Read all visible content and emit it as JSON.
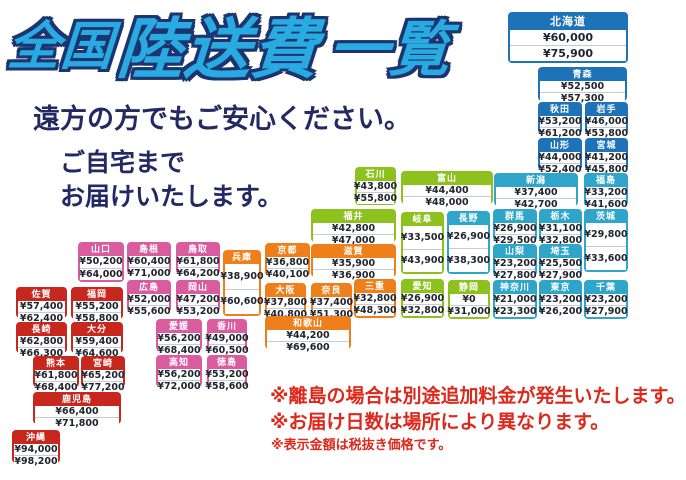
{
  "title": {
    "part1": "全国",
    "part2": "陸送費",
    "part3": "一覧"
  },
  "subtitle_line1": "遠方の方でもご安心ください。",
  "subtitle_line2": "ご自宅まで",
  "subtitle_line3": "お届けいたします。",
  "notes": [
    "※離島の場合は別途追加料金が発生いたします。",
    "※お届け日数は場所により異なります。",
    "※表示金額は税抜き価格です。"
  ],
  "colors": {
    "hokkaido_tohoku": "#1E73B8",
    "kanto_koshinetsu": "#2FA6C9",
    "hokuriku_tokai": "#8DC21E",
    "kansai": "#EF7F1A",
    "chugoku_shikoku": "#D95C9E",
    "kyushu_okinawa": "#C8271E",
    "title_fill": "#29ABE2",
    "title_outline": "#1C3571",
    "subtitle_text": "#232A63",
    "note_text": "#DD281C"
  },
  "prefectures": [
    {
      "id": "hokkaido",
      "name": "北海道",
      "price1": "¥60,000",
      "price2": "¥75,900",
      "group": "hokkaido_tohoku"
    },
    {
      "id": "aomori",
      "name": "青森",
      "price1": "¥52,500",
      "price2": "¥57,300",
      "group": "hokkaido_tohoku"
    },
    {
      "id": "akita",
      "name": "秋田",
      "price1": "¥53,200",
      "price2": "¥61,200",
      "group": "hokkaido_tohoku"
    },
    {
      "id": "iwate",
      "name": "岩手",
      "price1": "¥46,000",
      "price2": "¥53,800",
      "group": "hokkaido_tohoku"
    },
    {
      "id": "yamagata",
      "name": "山形",
      "price1": "¥44,000",
      "price2": "¥52,400",
      "group": "hokkaido_tohoku"
    },
    {
      "id": "miyagi",
      "name": "宮城",
      "price1": "¥41,200",
      "price2": "¥45,800",
      "group": "hokkaido_tohoku"
    },
    {
      "id": "niigata",
      "name": "新潟",
      "price1": "¥37,400",
      "price2": "¥42,700",
      "group": "kanto_koshinetsu"
    },
    {
      "id": "fukushima",
      "name": "福島",
      "price1": "¥33,200",
      "price2": "¥41,600",
      "group": "kanto_koshinetsu"
    },
    {
      "id": "gunma",
      "name": "群馬",
      "price1": "¥26,900",
      "price2": "¥29,500",
      "group": "kanto_koshinetsu"
    },
    {
      "id": "tochigi",
      "name": "栃木",
      "price1": "¥31,100",
      "price2": "¥32,800",
      "group": "kanto_koshinetsu"
    },
    {
      "id": "ibaraki",
      "name": "茨城",
      "price1": "¥29,800",
      "price2": "¥33,600",
      "group": "kanto_koshinetsu"
    },
    {
      "id": "yamanashi",
      "name": "山梨",
      "price1": "¥23,200",
      "price2": "¥27,800",
      "group": "kanto_koshinetsu"
    },
    {
      "id": "saitama",
      "name": "埼玉",
      "price1": "¥25,500",
      "price2": "¥27,900",
      "group": "kanto_koshinetsu"
    },
    {
      "id": "kanagawa",
      "name": "神奈川",
      "price1": "¥21,000",
      "price2": "¥23,300",
      "group": "kanto_koshinetsu"
    },
    {
      "id": "tokyo",
      "name": "東京",
      "price1": "¥23,200",
      "price2": "¥26,200",
      "group": "kanto_koshinetsu"
    },
    {
      "id": "chiba",
      "name": "千葉",
      "price1": "¥23,200",
      "price2": "¥27,900",
      "group": "kanto_koshinetsu"
    },
    {
      "id": "nagano",
      "name": "長野",
      "price1": "¥26,900",
      "price2": "¥38,300",
      "group": "kanto_koshinetsu"
    },
    {
      "id": "ishikawa",
      "name": "石川",
      "price1": "¥43,800",
      "price2": "¥55,800",
      "group": "hokuriku_tokai"
    },
    {
      "id": "toyama",
      "name": "富山",
      "price1": "¥44,400",
      "price2": "¥48,000",
      "group": "hokuriku_tokai"
    },
    {
      "id": "fukui",
      "name": "福井",
      "price1": "¥42,800",
      "price2": "¥47,000",
      "group": "hokuriku_tokai"
    },
    {
      "id": "gifu",
      "name": "岐阜",
      "price1": "¥33,500",
      "price2": "¥43,900",
      "group": "hokuriku_tokai"
    },
    {
      "id": "aichi",
      "name": "愛知",
      "price1": "¥26,900",
      "price2": "¥32,800",
      "group": "hokuriku_tokai"
    },
    {
      "id": "shizuoka",
      "name": "静岡",
      "price1": "¥0",
      "price2": "¥31,000",
      "group": "hokuriku_tokai"
    },
    {
      "id": "kyoto",
      "name": "京都",
      "price1": "¥36,800",
      "price2": "¥40,100",
      "group": "kansai"
    },
    {
      "id": "shiga",
      "name": "滋賀",
      "price1": "¥35,900",
      "price2": "¥36,900",
      "group": "kansai"
    },
    {
      "id": "hyogo",
      "name": "兵庫",
      "price1": "¥38,900",
      "price2": "¥60,600",
      "group": "kansai"
    },
    {
      "id": "osaka",
      "name": "大阪",
      "price1": "¥37,800",
      "price2": "¥40,800",
      "group": "kansai"
    },
    {
      "id": "nara",
      "name": "奈良",
      "price1": "¥37,400",
      "price2": "¥51,300",
      "group": "kansai"
    },
    {
      "id": "mie",
      "name": "三重",
      "price1": "¥32,800",
      "price2": "¥48,300",
      "group": "kansai"
    },
    {
      "id": "wakayama",
      "name": "和歌山",
      "price1": "¥44,200",
      "price2": "¥69,600",
      "group": "kansai"
    },
    {
      "id": "yamaguchi",
      "name": "山口",
      "price1": "¥50,200",
      "price2": "¥64,000",
      "group": "chugoku_shikoku"
    },
    {
      "id": "shimane",
      "name": "島根",
      "price1": "¥60,400",
      "price2": "¥71,000",
      "group": "chugoku_shikoku"
    },
    {
      "id": "tottori",
      "name": "鳥取",
      "price1": "¥61,800",
      "price2": "¥64,200",
      "group": "chugoku_shikoku"
    },
    {
      "id": "hiroshima",
      "name": "広島",
      "price1": "¥52,000",
      "price2": "¥55,600",
      "group": "chugoku_shikoku"
    },
    {
      "id": "okayama",
      "name": "岡山",
      "price1": "¥47,200",
      "price2": "¥53,200",
      "group": "chugoku_shikoku"
    },
    {
      "id": "ehime",
      "name": "愛媛",
      "price1": "¥56,200",
      "price2": "¥68,400",
      "group": "chugoku_shikoku"
    },
    {
      "id": "kagawa",
      "name": "香川",
      "price1": "¥49,000",
      "price2": "¥60,500",
      "group": "chugoku_shikoku"
    },
    {
      "id": "kochi",
      "name": "高知",
      "price1": "¥56,200",
      "price2": "¥72,000",
      "group": "chugoku_shikoku"
    },
    {
      "id": "tokushima",
      "name": "徳島",
      "price1": "¥53,200",
      "price2": "¥58,600",
      "group": "chugoku_shikoku"
    },
    {
      "id": "saga",
      "name": "佐賀",
      "price1": "¥57,400",
      "price2": "¥62,400",
      "group": "kyushu_okinawa"
    },
    {
      "id": "fukuoka",
      "name": "福岡",
      "price1": "¥55,200",
      "price2": "¥58,800",
      "group": "kyushu_okinawa"
    },
    {
      "id": "nagasaki",
      "name": "長崎",
      "price1": "¥62,800",
      "price2": "¥66,300",
      "group": "kyushu_okinawa"
    },
    {
      "id": "oita",
      "name": "大分",
      "price1": "¥59,400",
      "price2": "¥64,600",
      "group": "kyushu_okinawa"
    },
    {
      "id": "kumamoto",
      "name": "熊本",
      "price1": "¥61,800",
      "price2": "¥68,400",
      "group": "kyushu_okinawa"
    },
    {
      "id": "miyazaki",
      "name": "宮崎",
      "price1": "¥65,200",
      "price2": "¥77,200",
      "group": "kyushu_okinawa"
    },
    {
      "id": "kagoshima",
      "name": "鹿児島",
      "price1": "¥66,400",
      "price2": "¥71,800",
      "group": "kyushu_okinawa"
    },
    {
      "id": "okinawa",
      "name": "沖縄",
      "price1": "¥94,000",
      "price2": "¥98,200",
      "group": "kyushu_okinawa"
    }
  ]
}
